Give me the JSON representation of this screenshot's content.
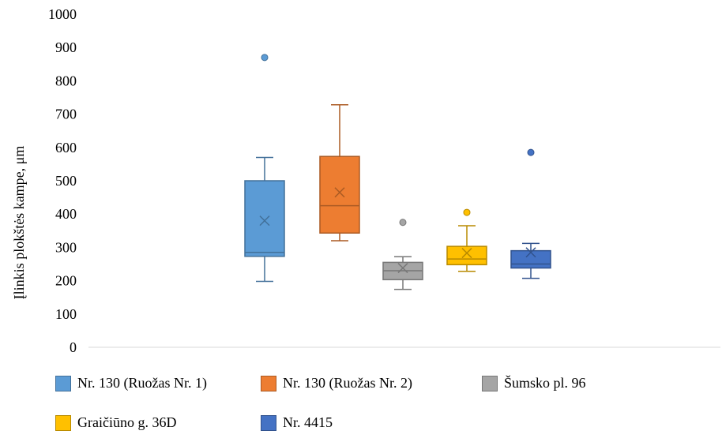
{
  "chart_data": {
    "type": "box",
    "title": "",
    "xlabel": "",
    "ylabel": "Įlinkis plokštės kampe, μm",
    "ylim": [
      0,
      1000
    ],
    "yticks": [
      0,
      100,
      200,
      300,
      400,
      500,
      600,
      700,
      800,
      900,
      1000
    ],
    "grid": false,
    "legend_position": "bottom",
    "series": [
      {
        "name": "Nr. 130 (Ruožas Nr. 1)",
        "color": "#5B9BD5",
        "min": 198,
        "q1": 273,
        "median": 285,
        "q3": 500,
        "max": 570,
        "mean": 380,
        "outliers": [
          870
        ]
      },
      {
        "name": "Nr. 130 (Ruožas Nr. 2)",
        "color": "#ED7D31",
        "min": 320,
        "q1": 343,
        "median": 425,
        "q3": 573,
        "max": 728,
        "mean": 465,
        "outliers": []
      },
      {
        "name": "Šumsko pl. 96",
        "color": "#A5A5A5",
        "min": 174,
        "q1": 203,
        "median": 230,
        "q3": 255,
        "max": 272,
        "mean": 238,
        "outliers": [
          375
        ]
      },
      {
        "name": "Graičiūno g. 36D",
        "color": "#FFC000",
        "min": 228,
        "q1": 248,
        "median": 265,
        "q3": 303,
        "max": 365,
        "mean": 283,
        "outliers": [
          405
        ]
      },
      {
        "name": "Nr. 4415",
        "color": "#4472C4",
        "min": 207,
        "q1": 238,
        "median": 250,
        "q3": 290,
        "max": 312,
        "mean": 285,
        "outliers": [
          585
        ]
      }
    ]
  }
}
